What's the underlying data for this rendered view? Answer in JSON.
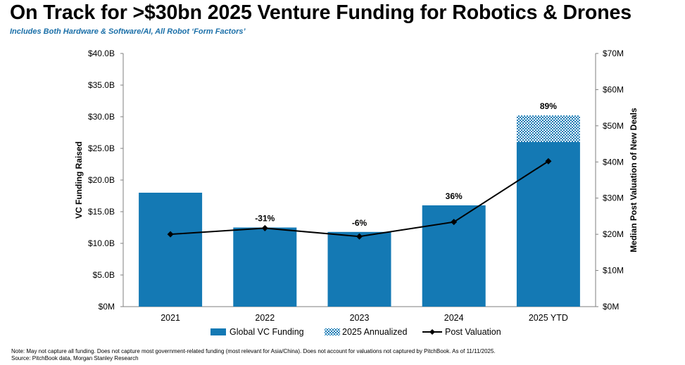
{
  "title": "On Track for >$30bn 2025 Venture Funding for Robotics & Drones",
  "subtitle": "Includes Both Hardware & Software/AI, All Robot ‘Form Factors’",
  "colors": {
    "bar": "#1479b4",
    "annualized": "#1479b4",
    "line": "#000000"
  },
  "chart_data": {
    "type": "bar",
    "categories": [
      "2021",
      "2022",
      "2023",
      "2024",
      "2025 YTD"
    ],
    "series": [
      {
        "name": "Global VC Funding",
        "type": "bar",
        "axis": "left",
        "values": [
          18.0,
          12.5,
          11.8,
          16.0,
          26.0
        ]
      },
      {
        "name": "2025 Annualized",
        "type": "bar-stacked",
        "axis": "left",
        "values": [
          null,
          null,
          null,
          null,
          30.2
        ]
      },
      {
        "name": "Post Valuation",
        "type": "line",
        "axis": "right",
        "values": [
          20,
          21.7,
          19.4,
          23.4,
          40.2
        ]
      }
    ],
    "bar_labels": [
      "",
      "-31%",
      "-6%",
      "36%",
      "89%"
    ],
    "ylabel": "VC Funding Raised",
    "y2label": "Median Post Valuation of New Deals",
    "ylim": [
      0,
      40
    ],
    "y2lim": [
      0,
      70
    ],
    "yticks": [
      "$0M",
      "$5.0B",
      "$10.0B",
      "$15.0B",
      "$20.0B",
      "$25.0B",
      "$30.0B",
      "$35.0B",
      "$40.0B"
    ],
    "y2ticks": [
      "$0M",
      "$10M",
      "$20M",
      "$30M",
      "$40M",
      "$50M",
      "$60M",
      "$70M"
    ],
    "legend": [
      "Global VC Funding",
      "2025 Annualized",
      "Post Valuation"
    ],
    "legend_position": "bottom",
    "grid": false
  },
  "footnote": {
    "note": "Note: May not capture all funding. Does not capture most government-related funding (most relevant for Asia/China). Does not account for valuations not captured by PitchBook. As of 11/11/2025.",
    "source": "Source: PitchBook data, Morgan Stanley Research"
  }
}
